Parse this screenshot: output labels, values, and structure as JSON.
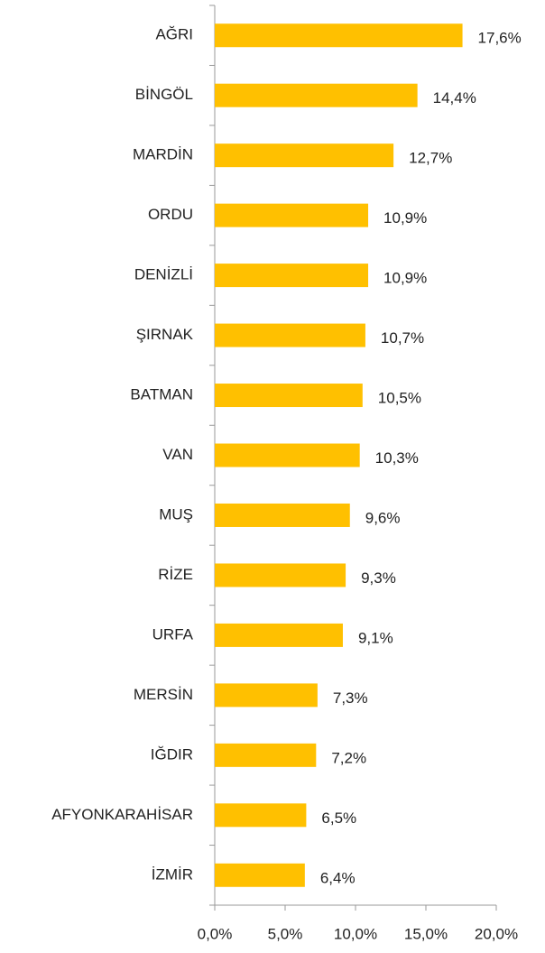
{
  "chart_data": {
    "type": "bar",
    "orientation": "horizontal",
    "categories": [
      "AĞRI",
      "BİNGÖL",
      "MARDİN",
      "ORDU",
      "DENİZLİ",
      "ŞIRNAK",
      "BATMAN",
      "VAN",
      "MUŞ",
      "RİZE",
      "URFA",
      "MERSİN",
      "IĞDIR",
      "AFYONKARAHİSAR",
      "İZMİR"
    ],
    "values": [
      17.6,
      14.4,
      12.7,
      10.9,
      10.9,
      10.7,
      10.5,
      10.3,
      9.6,
      9.3,
      9.1,
      7.3,
      7.2,
      6.5,
      6.4
    ],
    "value_labels": [
      "17,6%",
      "14,4%",
      "12,7%",
      "10,9%",
      "10,9%",
      "10,7%",
      "10,5%",
      "10,3%",
      "9,6%",
      "9,3%",
      "9,1%",
      "7,3%",
      "7,2%",
      "6,5%",
      "6,4%"
    ],
    "color": "#ffc000",
    "xlim": [
      0,
      20
    ],
    "xticks": [
      {
        "value": 0,
        "label": "0,0%"
      },
      {
        "value": 5,
        "label": "5,0%"
      },
      {
        "value": 10,
        "label": "10,0%"
      },
      {
        "value": 15,
        "label": "15,0%"
      },
      {
        "value": 20,
        "label": "20,0%"
      }
    ],
    "grid": false
  }
}
